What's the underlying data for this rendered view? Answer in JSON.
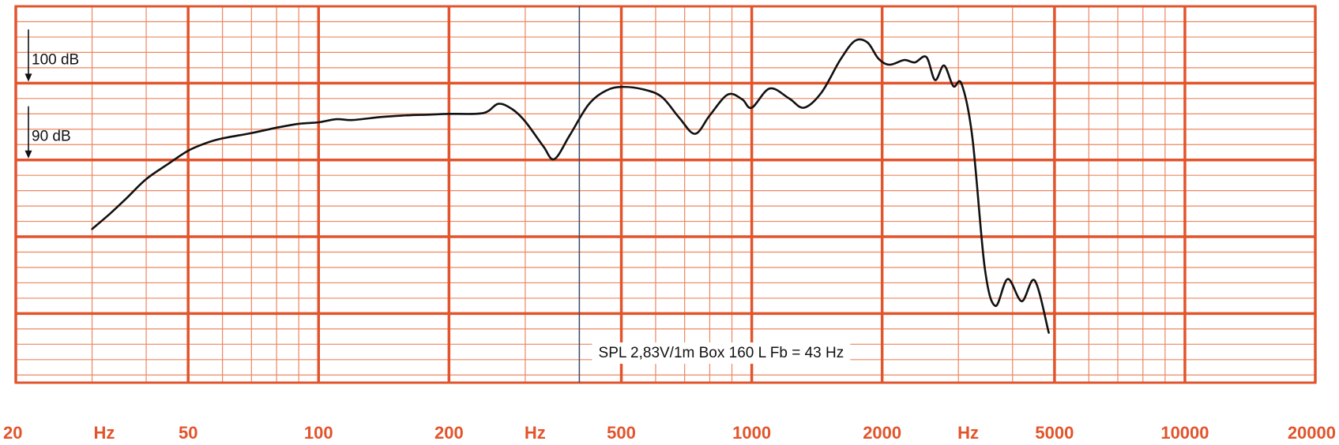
{
  "colors": {
    "grid_major": "#e2542b",
    "grid_minor": "#ec8660",
    "curve": "#111111",
    "marker_line": "#3a4d6b",
    "tick_text": "#e2542b"
  },
  "annotations": {
    "level_100": "100 dB",
    "level_90": "90 dB",
    "conditions": "SPL  2,83V/1m   Box 160 L Fb = 43 Hz"
  },
  "x_axis_labels": [
    "20",
    "Hz",
    "50",
    "100",
    "200",
    "Hz",
    "500",
    "1000",
    "2000",
    "Hz",
    "5000",
    "10000",
    "20000"
  ],
  "chart_data": {
    "type": "line",
    "title": "",
    "xlabel": "Hz",
    "ylabel": "dB",
    "x_scale": "log",
    "xlim": [
      20,
      20000
    ],
    "ylim": [
      61,
      110
    ],
    "x_ticks": [
      20,
      50,
      100,
      200,
      500,
      1000,
      2000,
      5000,
      10000,
      20000
    ],
    "y_reference_levels": [
      100,
      90
    ],
    "grid": true,
    "marker_frequency_hz": 400,
    "series": [
      {
        "name": "",
        "points": [
          [
            30,
            81
          ],
          [
            33,
            83
          ],
          [
            36,
            85
          ],
          [
            40,
            87.5
          ],
          [
            45,
            89.5
          ],
          [
            50,
            91.2
          ],
          [
            55,
            92.2
          ],
          [
            60,
            92.8
          ],
          [
            70,
            93.5
          ],
          [
            80,
            94.2
          ],
          [
            90,
            94.7
          ],
          [
            100,
            94.9
          ],
          [
            110,
            95.3
          ],
          [
            120,
            95.2
          ],
          [
            140,
            95.6
          ],
          [
            160,
            95.8
          ],
          [
            180,
            95.9
          ],
          [
            200,
            96
          ],
          [
            240,
            96.1
          ],
          [
            260,
            97.3
          ],
          [
            280,
            96.6
          ],
          [
            300,
            95
          ],
          [
            330,
            91.8
          ],
          [
            350,
            90.1
          ],
          [
            380,
            93.2
          ],
          [
            420,
            97.2
          ],
          [
            460,
            99
          ],
          [
            500,
            99.5
          ],
          [
            560,
            99.2
          ],
          [
            620,
            98.2
          ],
          [
            680,
            95.5
          ],
          [
            740,
            93.4
          ],
          [
            800,
            95.8
          ],
          [
            880,
            98.5
          ],
          [
            950,
            97.9
          ],
          [
            1000,
            96.8
          ],
          [
            1100,
            99.3
          ],
          [
            1220,
            98
          ],
          [
            1320,
            96.8
          ],
          [
            1450,
            98.8
          ],
          [
            1600,
            103
          ],
          [
            1730,
            105.5
          ],
          [
            1850,
            105.3
          ],
          [
            1960,
            103.2
          ],
          [
            2080,
            102.4
          ],
          [
            2250,
            103
          ],
          [
            2380,
            102.7
          ],
          [
            2530,
            103.4
          ],
          [
            2650,
            100.4
          ],
          [
            2780,
            102.3
          ],
          [
            2920,
            99.6
          ],
          [
            3050,
            99.9
          ],
          [
            3230,
            93
          ],
          [
            3450,
            76
          ],
          [
            3650,
            71
          ],
          [
            3900,
            74.5
          ],
          [
            4200,
            71.6
          ],
          [
            4500,
            74.3
          ],
          [
            4850,
            67.5
          ]
        ]
      }
    ]
  }
}
